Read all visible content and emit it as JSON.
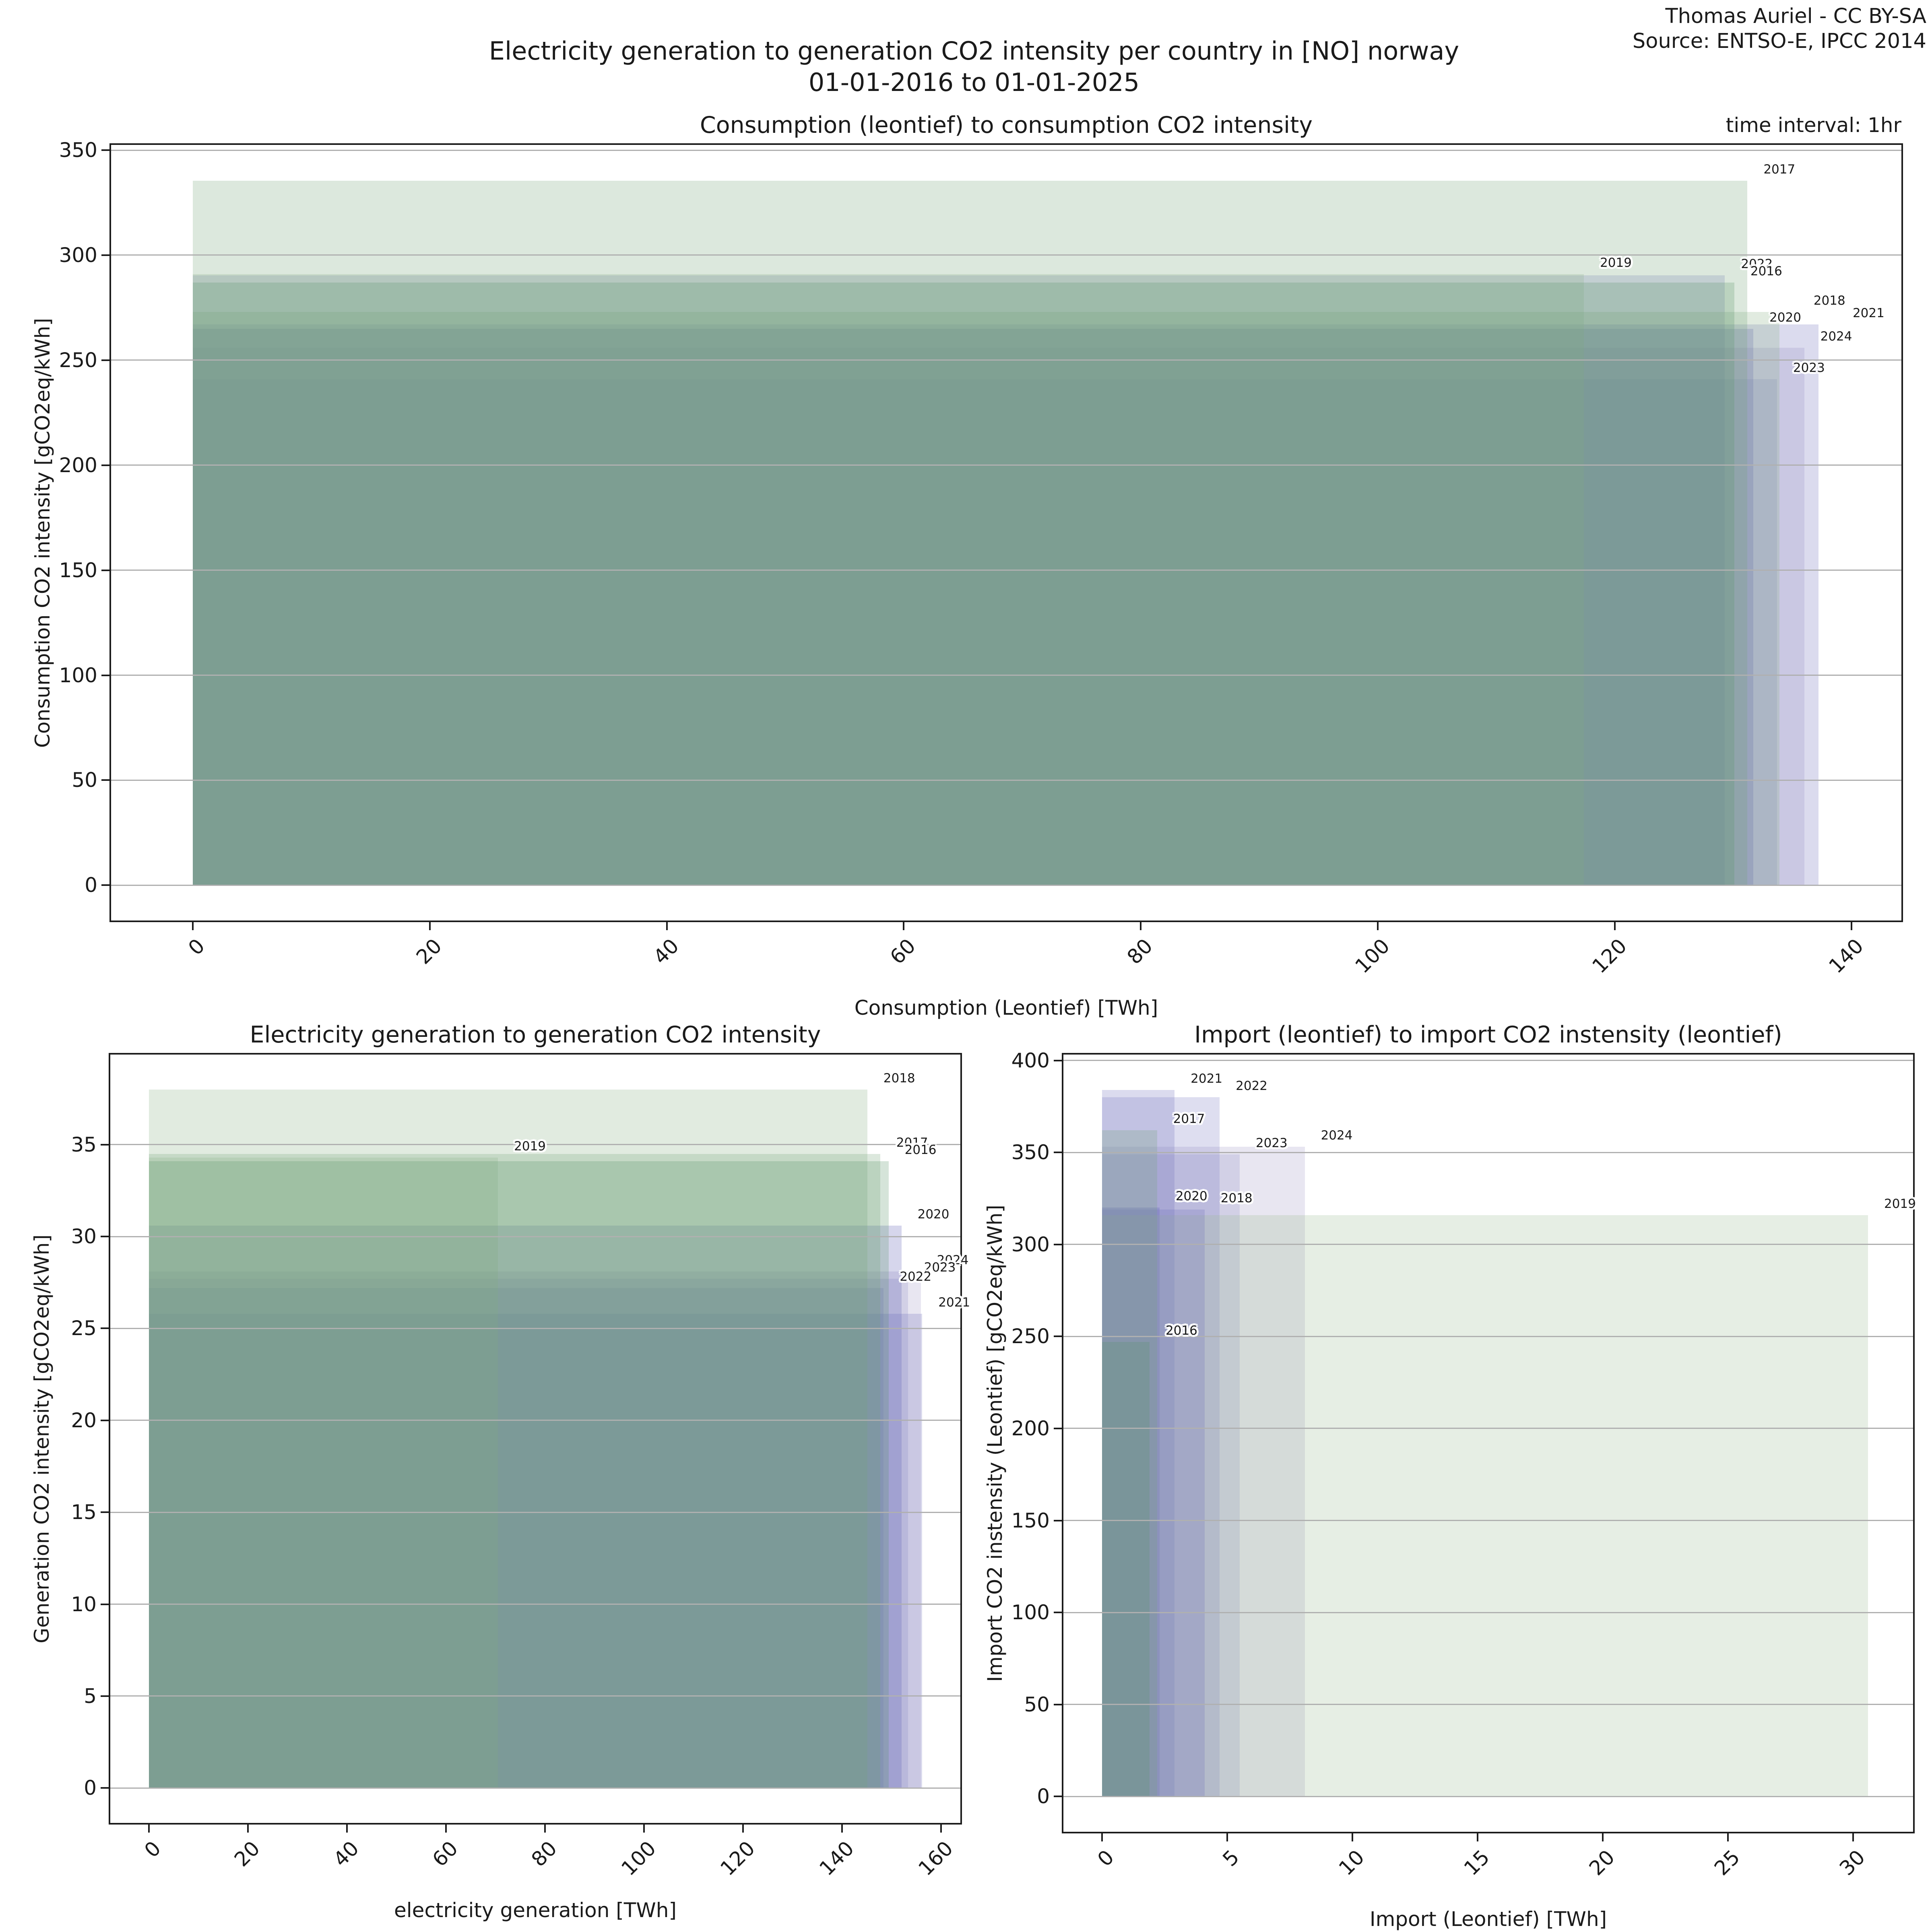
{
  "header": {
    "credit_line1": "Thomas Auriel - CC BY-SA",
    "credit_line2": "Source: ENTSO-E, IPCC 2014"
  },
  "suptitle": {
    "line1": "Electricity generation to generation CO2 intensity per country in [NO] norway",
    "line2": "01-01-2016 to 01-01-2025"
  },
  "top_right_note": "time interval: 1hr",
  "styles": {
    "fill_alpha": 0.25,
    "grid_color": "#b0b0b0",
    "spine_color": "#1c1c1c",
    "green_accent": "#9bbb93",
    "lavender_accent": "#6f6fbb"
  },
  "chart_data": [
    {
      "id": "consumption",
      "type": "area",
      "title": "Consumption (leontief) to consumption CO2 intensity",
      "xlabel": "Consumption (Leontief) [TWh]",
      "ylabel": "Consumption CO2 intensity [gCO2eq/kWh]",
      "xlim": [
        -6.9,
        144.2
      ],
      "ylim": [
        -16.8,
        352.5
      ],
      "xticks": [
        0,
        20,
        40,
        60,
        80,
        100,
        120,
        140
      ],
      "yticks": [
        0,
        50,
        100,
        150,
        200,
        250,
        300,
        350
      ],
      "grid": true,
      "series": [
        {
          "year": 2016,
          "x": 130.1,
          "y": 287.0,
          "color": "#569468"
        },
        {
          "year": 2017,
          "x": 131.2,
          "y": 335.5,
          "color": "#74a577"
        },
        {
          "year": 2018,
          "x": 133.9,
          "y": 273.0,
          "color": "#86b084",
          "label_dx": 45
        },
        {
          "year": 2019,
          "x": 117.4,
          "y": 291.0,
          "color": "#9bbb93"
        },
        {
          "year": 2020,
          "x": 131.7,
          "y": 265.0,
          "color": "#5d5db2"
        },
        {
          "year": 2021,
          "x": 137.2,
          "y": 267.0,
          "color": "#6f6fbb",
          "label_dx": 45
        },
        {
          "year": 2022,
          "x": 129.3,
          "y": 290.5,
          "color": "#7b7bc3"
        },
        {
          "year": 2023,
          "x": 133.7,
          "y": 241.0,
          "color": "#8f8fc6"
        },
        {
          "year": 2024,
          "x": 136.0,
          "y": 256.0,
          "color": "#a49cc8"
        }
      ]
    },
    {
      "id": "generation",
      "type": "area",
      "title": "Electricity generation to generation CO2 intensity",
      "xlabel": "electricity generation [TWh]",
      "ylabel": "Generation CO2 intensity [gCO2eq/kWh]",
      "xlim": [
        -7.8,
        163.9
      ],
      "ylim": [
        -1.9,
        39.9
      ],
      "xticks": [
        0,
        20,
        40,
        60,
        80,
        100,
        120,
        140,
        160
      ],
      "yticks": [
        0,
        5,
        10,
        15,
        20,
        25,
        30,
        35
      ],
      "grid": true,
      "series": [
        {
          "year": 2016,
          "x": 149.4,
          "y": 34.1,
          "color": "#569468"
        },
        {
          "year": 2017,
          "x": 147.7,
          "y": 34.5,
          "color": "#74a577"
        },
        {
          "year": 2018,
          "x": 145.1,
          "y": 38.0,
          "color": "#86b084"
        },
        {
          "year": 2019,
          "x": 70.5,
          "y": 34.3,
          "color": "#9bbb93"
        },
        {
          "year": 2020,
          "x": 152.0,
          "y": 30.6,
          "color": "#5d5db2"
        },
        {
          "year": 2021,
          "x": 156.2,
          "y": 25.8,
          "color": "#6f6fbb"
        },
        {
          "year": 2022,
          "x": 148.4,
          "y": 27.2,
          "color": "#7b7bc3"
        },
        {
          "year": 2023,
          "x": 153.3,
          "y": 27.7,
          "color": "#8f8fc6"
        },
        {
          "year": 2024,
          "x": 155.9,
          "y": 28.1,
          "color": "#a49cc8"
        }
      ]
    },
    {
      "id": "import",
      "type": "area",
      "title": "Import (leontief) to import CO2 instensity (leontief)",
      "xlabel": "Import (Leontief) [TWh]",
      "ylabel": "Import CO2 instensity (Leontief) [gCO2eq/kWh]",
      "xlim": [
        -1.54,
        32.4
      ],
      "ylim": [
        -19.2,
        403.2
      ],
      "xticks": [
        0,
        5,
        10,
        15,
        20,
        25,
        30
      ],
      "yticks": [
        0,
        50,
        100,
        150,
        200,
        250,
        300,
        350,
        400
      ],
      "grid": true,
      "series": [
        {
          "year": 2016,
          "x": 1.9,
          "y": 247.0,
          "color": "#569468"
        },
        {
          "year": 2017,
          "x": 2.2,
          "y": 362.0,
          "color": "#74a577"
        },
        {
          "year": 2018,
          "x": 4.1,
          "y": 319.0,
          "color": "#6f6fbb"
        },
        {
          "year": 2019,
          "x": 30.6,
          "y": 316.0,
          "color": "#9bbb93"
        },
        {
          "year": 2020,
          "x": 2.3,
          "y": 320.0,
          "color": "#5d5db2"
        },
        {
          "year": 2021,
          "x": 2.9,
          "y": 384.0,
          "color": "#6f6fbb"
        },
        {
          "year": 2022,
          "x": 4.7,
          "y": 380.0,
          "color": "#7b7bc3"
        },
        {
          "year": 2023,
          "x": 5.5,
          "y": 349.0,
          "color": "#8f8fc6"
        },
        {
          "year": 2024,
          "x": 8.1,
          "y": 353.0,
          "color": "#a49cc8"
        }
      ]
    }
  ]
}
